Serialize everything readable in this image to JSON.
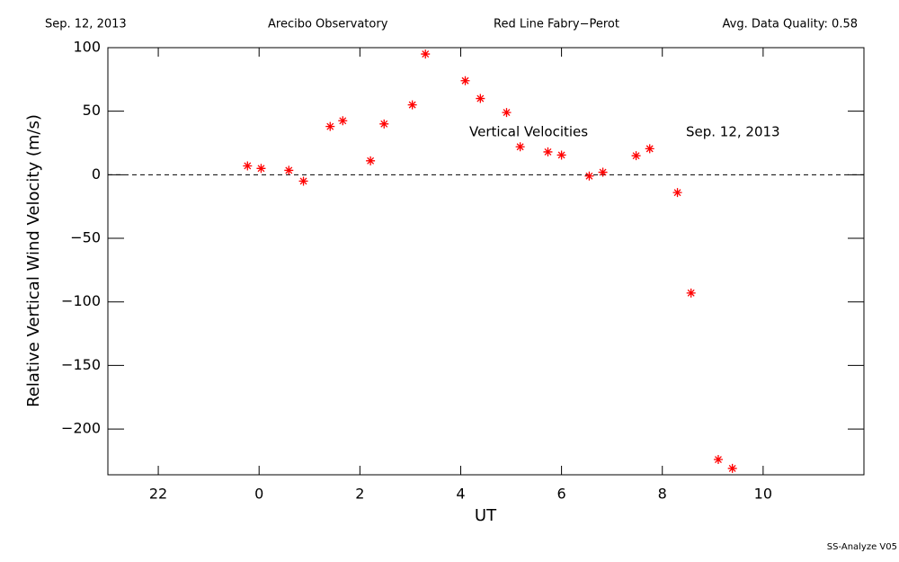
{
  "chart_data": {
    "type": "scatter",
    "header": [
      "Sep. 12, 2013",
      "Arecibo Observatory",
      "Red Line Fabry−Perot",
      "Avg. Data Quality: 0.58"
    ],
    "xlabel": "UT",
    "ylabel": "Relative Vertical Wind Velocity (m/s)",
    "annotations": [
      "Vertical Velocities",
      "Sep. 12, 2013"
    ],
    "footer": "SS-Analyze V05",
    "color": "#ff0000",
    "marker": "asterisk",
    "reference_line": 0,
    "x": [
      23.77,
      24.04,
      24.59,
      24.88,
      25.41,
      25.66,
      26.21,
      26.48,
      27.04,
      27.3,
      28.09,
      28.39,
      28.91,
      29.18,
      29.73,
      30.0,
      30.55,
      30.82,
      31.48,
      31.75,
      32.3,
      32.57,
      33.11,
      33.39
    ],
    "values": [
      7,
      5,
      3.5,
      -5,
      38,
      42.5,
      11,
      40,
      55,
      95,
      74,
      60,
      49,
      22,
      18,
      15.5,
      -1,
      2,
      15,
      20.5,
      -14,
      -93,
      -224,
      -231
    ],
    "xlim": [
      21,
      36
    ],
    "ylim": [
      -236,
      100
    ],
    "xticks": [
      22,
      {
        "value": 24,
        "label": "0"
      },
      {
        "value": 26,
        "label": "2"
      },
      {
        "value": 28,
        "label": "4"
      },
      {
        "value": 30,
        "label": "6"
      },
      {
        "value": 32,
        "label": "8"
      },
      {
        "value": 34,
        "label": "10"
      }
    ],
    "yticks": [
      100,
      50,
      0,
      -50,
      -100,
      -150,
      -200
    ]
  }
}
